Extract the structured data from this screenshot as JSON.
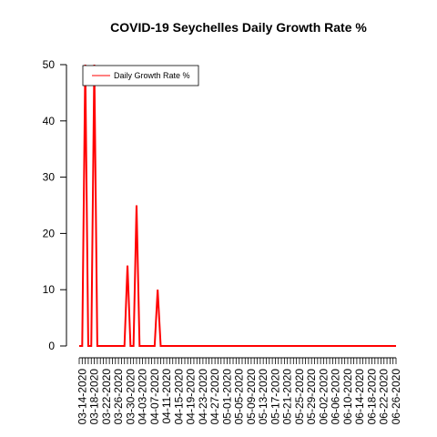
{
  "chart_data": {
    "type": "line",
    "title": "COVID-19 Seychelles Daily Growth Rate %",
    "xlabel": "",
    "ylabel": "",
    "x": [
      "03-13-2020",
      "03-14-2020",
      "03-15-2020",
      "03-16-2020",
      "03-17-2020",
      "03-18-2020",
      "03-19-2020",
      "03-20-2020",
      "03-21-2020",
      "03-22-2020",
      "03-23-2020",
      "03-24-2020",
      "03-25-2020",
      "03-26-2020",
      "03-27-2020",
      "03-28-2020",
      "03-29-2020",
      "03-30-2020",
      "03-31-2020",
      "04-01-2020",
      "04-02-2020",
      "04-03-2020",
      "04-04-2020",
      "04-05-2020",
      "04-06-2020",
      "04-07-2020",
      "04-08-2020",
      "04-09-2020",
      "04-10-2020",
      "04-11-2020",
      "04-12-2020",
      "04-13-2020",
      "04-14-2020",
      "04-15-2020",
      "04-16-2020",
      "04-17-2020",
      "04-18-2020",
      "04-19-2020",
      "04-20-2020",
      "04-21-2020",
      "04-22-2020",
      "04-23-2020",
      "04-24-2020",
      "04-25-2020",
      "04-26-2020",
      "04-27-2020",
      "04-28-2020",
      "04-29-2020",
      "04-30-2020",
      "05-01-2020",
      "05-02-2020",
      "05-03-2020",
      "05-04-2020",
      "05-05-2020",
      "05-06-2020",
      "05-07-2020",
      "05-08-2020",
      "05-09-2020",
      "05-10-2020",
      "05-11-2020",
      "05-12-2020",
      "05-13-2020",
      "05-14-2020",
      "05-15-2020",
      "05-16-2020",
      "05-17-2020",
      "05-18-2020",
      "05-19-2020",
      "05-20-2020",
      "05-21-2020",
      "05-22-2020",
      "05-23-2020",
      "05-24-2020",
      "05-25-2020",
      "05-26-2020",
      "05-27-2020",
      "05-28-2020",
      "05-29-2020",
      "05-30-2020",
      "05-31-2020",
      "06-01-2020",
      "06-02-2020",
      "06-03-2020",
      "06-04-2020",
      "06-05-2020",
      "06-06-2020",
      "06-07-2020",
      "06-08-2020",
      "06-09-2020",
      "06-10-2020",
      "06-11-2020",
      "06-12-2020",
      "06-13-2020",
      "06-14-2020",
      "06-15-2020",
      "06-16-2020",
      "06-17-2020",
      "06-18-2020",
      "06-19-2020",
      "06-20-2020",
      "06-21-2020",
      "06-22-2020",
      "06-23-2020",
      "06-24-2020",
      "06-25-2020",
      "06-26-2020"
    ],
    "x_tick_labels": [
      "03-14-2020",
      "03-18-2020",
      "03-22-2020",
      "03-26-2020",
      "03-30-2020",
      "04-03-2020",
      "04-07-2020",
      "04-11-2020",
      "04-15-2020",
      "04-19-2020",
      "04-23-2020",
      "04-27-2020",
      "05-01-2020",
      "05-05-2020",
      "05-09-2020",
      "05-13-2020",
      "05-17-2020",
      "05-21-2020",
      "05-25-2020",
      "05-29-2020",
      "06-02-2020",
      "06-06-2020",
      "06-10-2020",
      "06-14-2020",
      "06-18-2020",
      "06-22-2020",
      "06-26-2020"
    ],
    "y_ticks": [
      0,
      10,
      20,
      30,
      40,
      50
    ],
    "ylim": [
      0,
      50
    ],
    "series": [
      {
        "name": "Daily Growth Rate %",
        "color": "#ff0000",
        "values": [
          0,
          0,
          50,
          0,
          0,
          50,
          0,
          0,
          0,
          0,
          0,
          0,
          0,
          0,
          0,
          0,
          14.3,
          0,
          0,
          25,
          0,
          0,
          0,
          0,
          0,
          0,
          10,
          0,
          0,
          0,
          0,
          0,
          0,
          0,
          0,
          0,
          0,
          0,
          0,
          0,
          0,
          0,
          0,
          0,
          0,
          0,
          0,
          0,
          0,
          0,
          0,
          0,
          0,
          0,
          0,
          0,
          0,
          0,
          0,
          0,
          0,
          0,
          0,
          0,
          0,
          0,
          0,
          0,
          0,
          0,
          0,
          0,
          0,
          0,
          0,
          0,
          0,
          0,
          0,
          0,
          0,
          0,
          0,
          0,
          0,
          0,
          0,
          0,
          0,
          0,
          0,
          0,
          0,
          0,
          0,
          0,
          0,
          0,
          0,
          0,
          0,
          0,
          0,
          0,
          0,
          0
        ]
      }
    ],
    "legend": {
      "position": "top-left"
    },
    "grid": false
  }
}
